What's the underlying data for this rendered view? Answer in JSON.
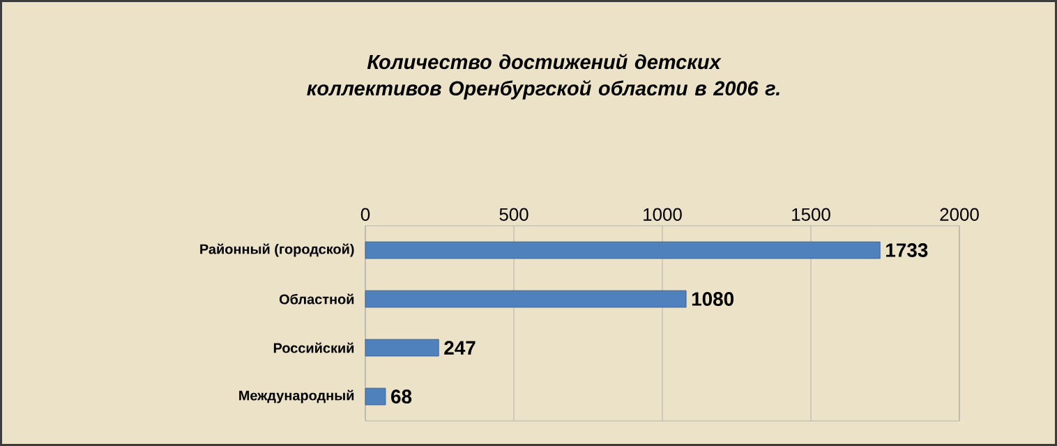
{
  "chart_data": {
    "type": "bar",
    "orientation": "horizontal",
    "title": "Количество достижений детских коллективов Оренбургской области  в 2006 г.",
    "categories": [
      "Районный (городской)",
      "Областной",
      "Российский",
      "Международный"
    ],
    "values": [
      1733,
      1080,
      247,
      68
    ],
    "color": "#4f81bd",
    "xlim": [
      0,
      2000
    ],
    "xticks": [
      0,
      500,
      1000,
      1500,
      2000
    ],
    "grid": "x",
    "data_labels": true
  }
}
